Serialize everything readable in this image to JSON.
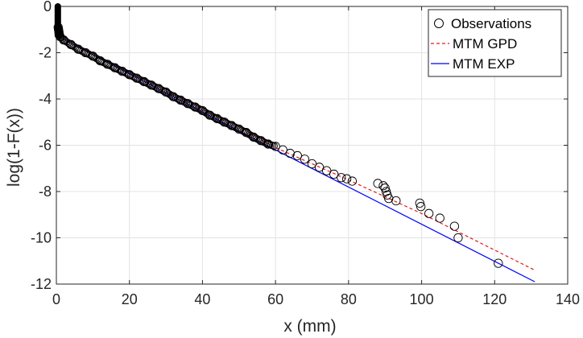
{
  "chart_data": {
    "type": "scatter",
    "xlabel": "x (mm)",
    "ylabel": "log(1-F(x))",
    "xlim": [
      0,
      140
    ],
    "ylim": [
      -12,
      0
    ],
    "xticks": [
      "0",
      "20",
      "40",
      "60",
      "80",
      "100",
      "120",
      "140"
    ],
    "yticks": [
      "0",
      "-2",
      "-4",
      "-6",
      "-8",
      "-10",
      "-12"
    ],
    "grid": true,
    "legend_position": "top-right",
    "legend": [
      "Observations",
      "MTM GPD",
      "MTM EXP"
    ],
    "colors": {
      "observations": "#000000",
      "gpd": "#e41a1c",
      "exp": "#0000ff"
    },
    "series": [
      {
        "name": "Observations",
        "style": "open-circle",
        "points": [
          [
            0.5,
            -0.9
          ],
          [
            0.6,
            -1.0
          ],
          [
            0.7,
            -1.1
          ],
          [
            0.8,
            -1.2
          ],
          [
            1.0,
            -1.3
          ],
          [
            2,
            -1.45
          ],
          [
            4,
            -1.65
          ],
          [
            6,
            -1.85
          ],
          [
            8,
            -2.0
          ],
          [
            10,
            -2.15
          ],
          [
            12,
            -2.35
          ],
          [
            14,
            -2.5
          ],
          [
            16,
            -2.65
          ],
          [
            18,
            -2.8
          ],
          [
            20,
            -2.95
          ],
          [
            22,
            -3.1
          ],
          [
            24,
            -3.25
          ],
          [
            26,
            -3.4
          ],
          [
            28,
            -3.55
          ],
          [
            30,
            -3.7
          ],
          [
            32,
            -3.9
          ],
          [
            34,
            -4.05
          ],
          [
            36,
            -4.2
          ],
          [
            38,
            -4.35
          ],
          [
            40,
            -4.5
          ],
          [
            42,
            -4.7
          ],
          [
            44,
            -4.85
          ],
          [
            46,
            -5.0
          ],
          [
            48,
            -5.15
          ],
          [
            50,
            -5.3
          ],
          [
            52,
            -5.45
          ],
          [
            54,
            -5.65
          ],
          [
            56,
            -5.8
          ],
          [
            58,
            -5.95
          ],
          [
            60,
            -6.05
          ],
          [
            62,
            -6.2
          ],
          [
            64,
            -6.35
          ],
          [
            66,
            -6.45
          ],
          [
            68,
            -6.6
          ],
          [
            70,
            -6.8
          ],
          [
            72,
            -6.95
          ],
          [
            74,
            -7.1
          ],
          [
            76,
            -7.25
          ],
          [
            78,
            -7.4
          ],
          [
            79.5,
            -7.45
          ],
          [
            81,
            -7.55
          ],
          [
            88,
            -7.65
          ],
          [
            89.5,
            -7.75
          ],
          [
            90,
            -7.85
          ],
          [
            90.3,
            -8.0
          ],
          [
            90.6,
            -8.15
          ],
          [
            91,
            -8.3
          ],
          [
            93,
            -8.4
          ],
          [
            99.5,
            -8.5
          ],
          [
            99.8,
            -8.65
          ],
          [
            102,
            -8.95
          ],
          [
            105,
            -9.15
          ],
          [
            109,
            -9.5
          ],
          [
            110,
            -10.0
          ],
          [
            121,
            -11.1
          ]
        ]
      },
      {
        "name": "MTM GPD",
        "style": "dashed-line",
        "points": [
          [
            1,
            -1.35
          ],
          [
            60,
            -6.1
          ],
          [
            80,
            -7.5
          ],
          [
            100,
            -8.95
          ],
          [
            131,
            -11.4
          ]
        ]
      },
      {
        "name": "MTM EXP",
        "style": "solid-line",
        "points": [
          [
            1,
            -1.35
          ],
          [
            60,
            -6.2
          ],
          [
            131,
            -11.9
          ]
        ]
      }
    ]
  }
}
